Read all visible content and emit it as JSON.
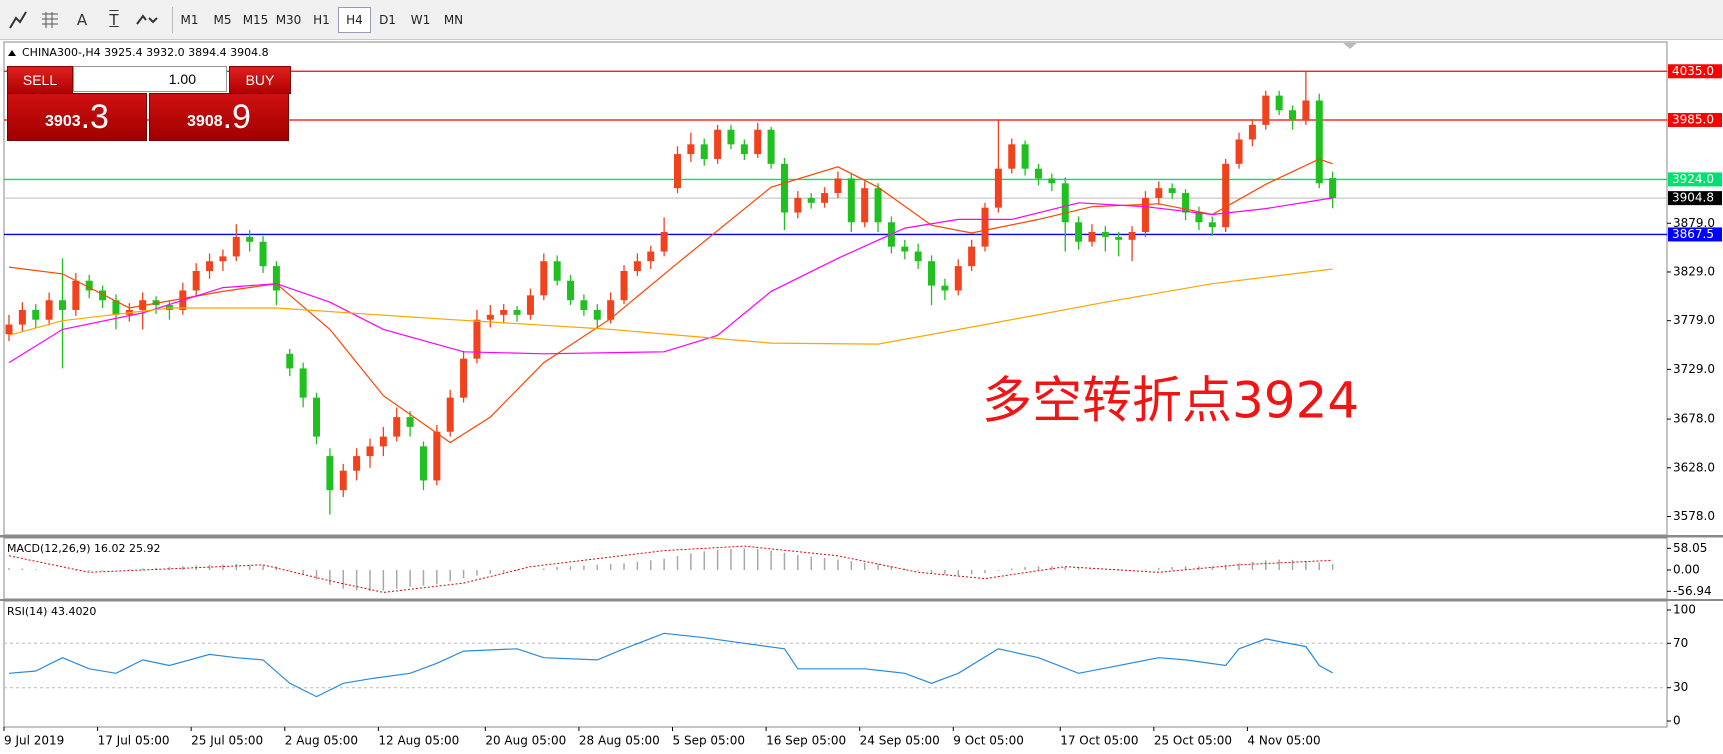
{
  "toolbar": {
    "tools": [
      "A",
      "T"
    ],
    "timeframes": [
      "M1",
      "M5",
      "M15",
      "M30",
      "H1",
      "H4",
      "D1",
      "W1",
      "MN"
    ],
    "active": "H4"
  },
  "trade": {
    "sell": "SELL",
    "buy": "BUY",
    "volume": "1.00",
    "bid_main": "3903",
    "bid_tail": ".3",
    "ask_main": "3908",
    "ask_tail": ".9"
  },
  "chart_data": {
    "type": "candlestick",
    "title": "CHINA300-,H4  3925.4 3932.0 3894.4 3904.8",
    "annotation": "多空转折点3924",
    "up_color": "#f0421c",
    "down_color": "#1fc01f",
    "ylim": [
      3559,
      4063
    ],
    "yticks": [
      {
        "value": 3879,
        "label": "3879.0"
      },
      {
        "value": 3829,
        "label": "3829.0"
      },
      {
        "value": 3779,
        "label": "3779.0"
      },
      {
        "value": 3729,
        "label": "3729.0"
      },
      {
        "value": 3678,
        "label": "3678.0"
      },
      {
        "value": 3628,
        "label": "3628.0"
      },
      {
        "value": 3578,
        "label": "3578.0"
      }
    ],
    "levels": [
      {
        "value": 4035,
        "label": "4035.0",
        "color": "#ff0000"
      },
      {
        "value": 3985,
        "label": "3985.0",
        "color": "#ff0000"
      },
      {
        "value": 3924,
        "label": "3924.0",
        "color": "#00e070"
      },
      {
        "value": 3867.5,
        "label": "3867.5",
        "color": "#0000ff"
      }
    ],
    "current": {
      "value": 3904.8,
      "label": "3904.8",
      "color": "#c8c8c8",
      "box": "#000000"
    },
    "categories": [
      "9 Jul 2019",
      null,
      null,
      null,
      null,
      null,
      null,
      "17 Jul 05:00",
      null,
      null,
      null,
      null,
      null,
      null,
      "25 Jul 05:00",
      null,
      null,
      null,
      null,
      null,
      null,
      "2 Aug 05:00",
      null,
      null,
      null,
      null,
      null,
      null,
      "12 Aug 05:00",
      null,
      null,
      null,
      null,
      null,
      null,
      null,
      "20 Aug 05:00",
      null,
      null,
      null,
      null,
      null,
      null,
      "28 Aug 05:00",
      null,
      null,
      null,
      null,
      null,
      null,
      "5 Sep 05:00",
      null,
      null,
      null,
      null,
      null,
      null,
      "16 Sep 05:00",
      null,
      null,
      null,
      null,
      null,
      null,
      "24 Sep 05:00",
      null,
      null,
      null,
      null,
      null,
      null,
      "9 Oct 05:00",
      null,
      null,
      null,
      null,
      null,
      null,
      null,
      "17 Oct 05:00",
      null,
      null,
      null,
      null,
      null,
      null,
      "25 Oct 05:00",
      null,
      null,
      null,
      null,
      null,
      null,
      "4 Nov 05:00",
      null,
      null,
      null,
      null,
      null,
      null
    ],
    "candles": [
      [
        3765,
        3785,
        3758,
        3775
      ],
      [
        3775,
        3798,
        3768,
        3790
      ],
      [
        3790,
        3796,
        3772,
        3780
      ],
      [
        3780,
        3808,
        3774,
        3800
      ],
      [
        3800,
        3843,
        3730,
        3790
      ],
      [
        3790,
        3828,
        3784,
        3820
      ],
      [
        3820,
        3826,
        3802,
        3810
      ],
      [
        3810,
        3815,
        3792,
        3800
      ],
      [
        3800,
        3806,
        3770,
        3785
      ],
      [
        3785,
        3797,
        3778,
        3790
      ],
      [
        3790,
        3808,
        3770,
        3800
      ],
      [
        3800,
        3804,
        3786,
        3795
      ],
      [
        3795,
        3800,
        3780,
        3790
      ],
      [
        3790,
        3818,
        3785,
        3810
      ],
      [
        3810,
        3838,
        3804,
        3830
      ],
      [
        3830,
        3848,
        3822,
        3840
      ],
      [
        3840,
        3852,
        3830,
        3845
      ],
      [
        3845,
        3878,
        3840,
        3865
      ],
      [
        3865,
        3872,
        3850,
        3860
      ],
      [
        3860,
        3866,
        3828,
        3835
      ],
      [
        3835,
        3840,
        3795,
        3810
      ],
      [
        3745,
        3750,
        3722,
        3730
      ],
      [
        3730,
        3736,
        3690,
        3700
      ],
      [
        3700,
        3705,
        3652,
        3660
      ],
      [
        3640,
        3648,
        3580,
        3605
      ],
      [
        3605,
        3632,
        3598,
        3625
      ],
      [
        3625,
        3648,
        3615,
        3640
      ],
      [
        3640,
        3658,
        3628,
        3650
      ],
      [
        3650,
        3670,
        3640,
        3660
      ],
      [
        3660,
        3690,
        3655,
        3680
      ],
      [
        3680,
        3686,
        3660,
        3670
      ],
      [
        3650,
        3655,
        3605,
        3615
      ],
      [
        3615,
        3672,
        3610,
        3665
      ],
      [
        3665,
        3708,
        3660,
        3700
      ],
      [
        3700,
        3748,
        3695,
        3740
      ],
      [
        3740,
        3790,
        3735,
        3780
      ],
      [
        3780,
        3795,
        3772,
        3785
      ],
      [
        3785,
        3796,
        3776,
        3790
      ],
      [
        3790,
        3794,
        3778,
        3785
      ],
      [
        3785,
        3812,
        3780,
        3805
      ],
      [
        3805,
        3848,
        3800,
        3840
      ],
      [
        3840,
        3846,
        3815,
        3820
      ],
      [
        3820,
        3826,
        3795,
        3800
      ],
      [
        3800,
        3806,
        3784,
        3790
      ],
      [
        3790,
        3796,
        3772,
        3780
      ],
      [
        3780,
        3808,
        3776,
        3800
      ],
      [
        3800,
        3836,
        3796,
        3830
      ],
      [
        3830,
        3848,
        3825,
        3840
      ],
      [
        3840,
        3856,
        3832,
        3850
      ],
      [
        3850,
        3885,
        3845,
        3870
      ],
      [
        3915,
        3958,
        3910,
        3950
      ],
      [
        3950,
        3972,
        3942,
        3960
      ],
      [
        3960,
        3966,
        3938,
        3945
      ],
      [
        3945,
        3980,
        3940,
        3975
      ],
      [
        3975,
        3980,
        3955,
        3960
      ],
      [
        3960,
        3965,
        3944,
        3950
      ],
      [
        3950,
        3982,
        3946,
        3975
      ],
      [
        3975,
        3978,
        3935,
        3940
      ],
      [
        3940,
        3946,
        3872,
        3890
      ],
      [
        3890,
        3912,
        3884,
        3905
      ],
      [
        3905,
        3910,
        3894,
        3900
      ],
      [
        3900,
        3916,
        3895,
        3910
      ],
      [
        3910,
        3932,
        3905,
        3925
      ],
      [
        3925,
        3930,
        3870,
        3880
      ],
      [
        3880,
        3922,
        3875,
        3915
      ],
      [
        3915,
        3920,
        3870,
        3880
      ],
      [
        3880,
        3886,
        3848,
        3855
      ],
      [
        3855,
        3862,
        3842,
        3850
      ],
      [
        3850,
        3858,
        3832,
        3840
      ],
      [
        3840,
        3846,
        3795,
        3815
      ],
      [
        3815,
        3822,
        3800,
        3810
      ],
      [
        3810,
        3842,
        3805,
        3835
      ],
      [
        3835,
        3862,
        3830,
        3855
      ],
      [
        3855,
        3900,
        3850,
        3895
      ],
      [
        3895,
        3985,
        3890,
        3935
      ],
      [
        3935,
        3966,
        3930,
        3960
      ],
      [
        3960,
        3964,
        3928,
        3935
      ],
      [
        3935,
        3940,
        3918,
        3925
      ],
      [
        3925,
        3930,
        3912,
        3920
      ],
      [
        3920,
        3926,
        3850,
        3880
      ],
      [
        3880,
        3886,
        3852,
        3860
      ],
      [
        3860,
        3878,
        3855,
        3870
      ],
      [
        3870,
        3876,
        3850,
        3865
      ],
      [
        3865,
        3870,
        3845,
        3862
      ],
      [
        3862,
        3876,
        3840,
        3870
      ],
      [
        3870,
        3912,
        3865,
        3905
      ],
      [
        3905,
        3922,
        3898,
        3915
      ],
      [
        3915,
        3920,
        3904,
        3910
      ],
      [
        3910,
        3914,
        3882,
        3890
      ],
      [
        3890,
        3896,
        3872,
        3880
      ],
      [
        3880,
        3886,
        3866,
        3875
      ],
      [
        3875,
        3945,
        3870,
        3940
      ],
      [
        3940,
        3972,
        3935,
        3965
      ],
      [
        3965,
        3986,
        3958,
        3980
      ],
      [
        3980,
        4015,
        3975,
        4010
      ],
      [
        4010,
        4015,
        3990,
        3995
      ],
      [
        3995,
        4000,
        3975,
        3985
      ],
      [
        3985,
        4035,
        3980,
        4005
      ],
      [
        4005,
        4012,
        3915,
        3920
      ],
      [
        3925.4,
        3932.0,
        3894.4,
        3904.8
      ]
    ],
    "ma_lines": [
      {
        "color": "#ff4500",
        "x": [
          0,
          4,
          9,
          16,
          20,
          24,
          28,
          33,
          36,
          40,
          45,
          50,
          57,
          62,
          65,
          69,
          72,
          77,
          81,
          86,
          90,
          94,
          98,
          99
        ],
        "values": [
          3834,
          3827,
          3792,
          3809,
          3817,
          3770,
          3702,
          3654,
          3680,
          3736,
          3781,
          3838,
          3916,
          3937,
          3916,
          3877,
          3869,
          3883,
          3896,
          3899,
          3888,
          3919,
          3945,
          3940
        ]
      },
      {
        "color": "#ff00ff",
        "x": [
          0,
          4,
          10,
          16,
          20,
          24,
          28,
          34,
          40,
          49,
          53,
          57,
          62,
          67,
          71,
          75,
          80,
          85,
          90,
          94,
          99
        ],
        "values": [
          3736,
          3770,
          3787,
          3813,
          3817,
          3798,
          3770,
          3747,
          3745,
          3747,
          3764,
          3809,
          3843,
          3874,
          3883,
          3883,
          3900,
          3896,
          3888,
          3894,
          3905
        ]
      },
      {
        "color": "#ffa500",
        "x": [
          0,
          4,
          12,
          20,
          32,
          45,
          57,
          65,
          73,
          82,
          90,
          99
        ],
        "values": [
          3764,
          3779,
          3792,
          3792,
          3781,
          3770,
          3756,
          3755,
          3775,
          3798,
          3817,
          3832
        ]
      }
    ],
    "macd": {
      "label": "MACD(12,26,9) 16.02 25.92",
      "ylim": [
        -77.6,
        85.7
      ],
      "yticks": [
        58.05,
        {
          "value": 0,
          "label": "0.00"
        },
        -56.94
      ],
      "bar_color": "#a8a8a8",
      "signal_color": "#e00000",
      "values": [
        5,
        4,
        2,
        1,
        0,
        -2,
        -3,
        -2,
        0,
        2,
        4,
        6,
        8,
        10,
        12,
        14,
        15,
        16,
        14,
        12,
        10,
        2,
        -10,
        -25,
        -40,
        -50,
        -55,
        -57,
        -55,
        -50,
        -45,
        -42,
        -38,
        -30,
        -22,
        -15,
        -10,
        -6,
        -3,
        0,
        4,
        8,
        10,
        12,
        14,
        16,
        18,
        22,
        26,
        30,
        38,
        45,
        50,
        54,
        57,
        58,
        56,
        52,
        46,
        40,
        36,
        32,
        28,
        24,
        20,
        16,
        10,
        4,
        -2,
        -8,
        -12,
        -14,
        -12,
        -8,
        -2,
        4,
        8,
        10,
        10,
        8,
        5,
        2,
        0,
        -2,
        -1,
        2,
        5,
        8,
        10,
        10,
        10,
        14,
        18,
        22,
        26,
        28,
        27,
        24,
        20,
        16.02
      ],
      "signal": {
        "x": [
          0,
          6,
          19,
          24,
          28,
          34,
          39,
          49,
          55,
          62,
          68,
          73,
          79,
          86,
          92,
          99
        ],
        "values": [
          38,
          -6,
          14,
          -29,
          -60,
          -35,
          9,
          52,
          64,
          38,
          -6,
          -23,
          9,
          -6,
          14,
          25.92
        ]
      }
    },
    "rsi": {
      "label": "RSI(14) 43.4020",
      "ylim": [
        -5.4,
        108.1
      ],
      "yticks": [
        100,
        70,
        30,
        0
      ],
      "levels": [
        70,
        30
      ],
      "color": "#2a8ae0",
      "x": [
        0,
        2,
        4,
        6,
        8,
        10,
        12,
        15,
        17,
        19,
        21,
        23,
        25,
        27,
        30,
        32,
        34,
        38,
        40,
        44,
        46,
        49,
        52,
        55,
        58,
        59,
        64,
        67,
        69,
        71,
        74,
        77,
        80,
        86,
        88,
        91,
        92,
        94,
        97,
        98,
        99
      ],
      "values": [
        43,
        45,
        57,
        47,
        43,
        55,
        50,
        60,
        57,
        55,
        34,
        22,
        34,
        38,
        43,
        52,
        63,
        65,
        57,
        55,
        65,
        79,
        75,
        70,
        65,
        47,
        47,
        43,
        34,
        43,
        65,
        57,
        43,
        57,
        55,
        50,
        65,
        74,
        67,
        50,
        43.402
      ]
    }
  }
}
